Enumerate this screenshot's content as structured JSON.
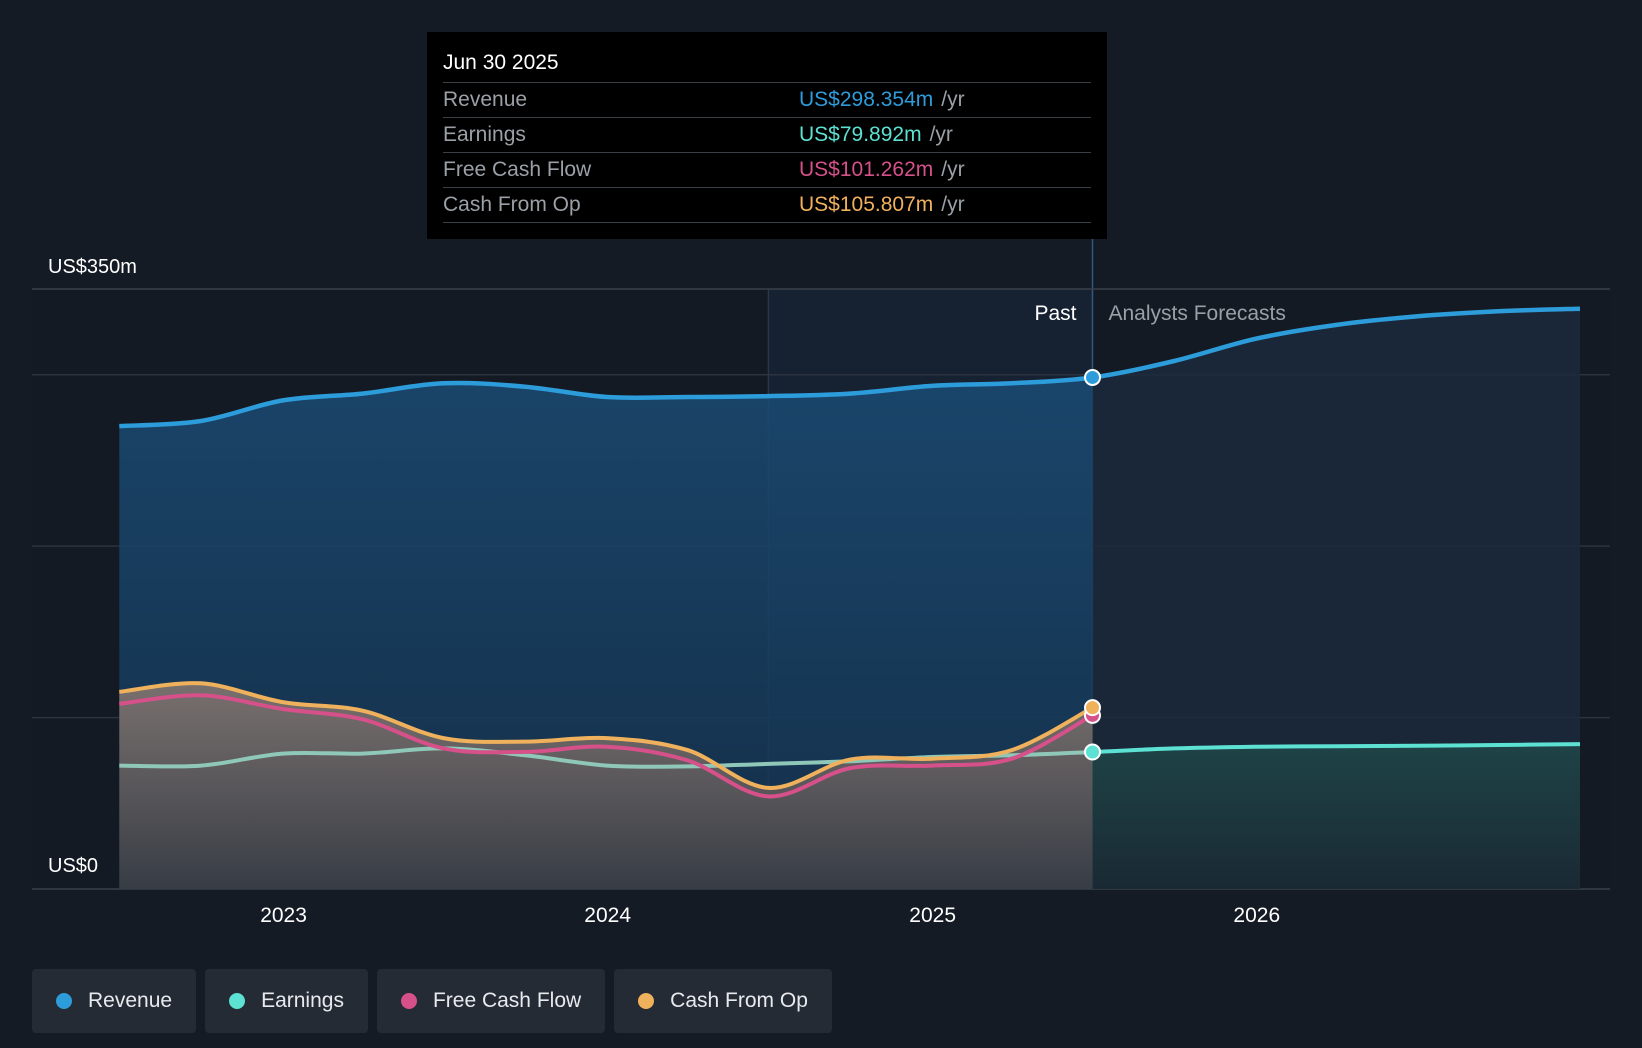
{
  "tooltip": {
    "date": "Jun 30 2025",
    "rows": [
      {
        "label": "Revenue",
        "value": "US$298.354m",
        "unit": "/yr",
        "color": "#2d9cdb"
      },
      {
        "label": "Earnings",
        "value": "US$79.892m",
        "unit": "/yr",
        "color": "#5ce1d3"
      },
      {
        "label": "Free Cash Flow",
        "value": "US$101.262m",
        "unit": "/yr",
        "color": "#d6508a"
      },
      {
        "label": "Cash From Op",
        "value": "US$105.807m",
        "unit": "/yr",
        "color": "#f0b15d"
      }
    ]
  },
  "legend": [
    {
      "label": "Revenue",
      "color": "#2d9cdb"
    },
    {
      "label": "Earnings",
      "color": "#5ce1d3"
    },
    {
      "label": "Free Cash Flow",
      "color": "#d6508a"
    },
    {
      "label": "Cash From Op",
      "color": "#f0b15d"
    }
  ],
  "chart_data": {
    "type": "line",
    "y_axis": {
      "top_label": "US$350m",
      "bottom_label": "US$0",
      "ylim": [
        0,
        350
      ],
      "gridlines": [
        100,
        200,
        300
      ]
    },
    "x_ticks": [
      {
        "label": "2023",
        "x": "2023-01-01"
      },
      {
        "label": "2024",
        "x": "2024-01-01"
      },
      {
        "label": "2025",
        "x": "2025-01-01"
      },
      {
        "label": "2026",
        "x": "2026-01-01"
      }
    ],
    "x_range": [
      "2022-05-01",
      "2026-12-31"
    ],
    "divider": {
      "date": "2025-06-30",
      "past_label": "Past",
      "forecast_label": "Analysts Forecasts"
    },
    "highlight_start": "2024-06-30",
    "series": [
      {
        "name": "Revenue",
        "color": "#2d9cdb",
        "points": [
          [
            "2022-06-30",
            270
          ],
          [
            "2022-09-30",
            273
          ],
          [
            "2022-12-31",
            285
          ],
          [
            "2023-03-31",
            289
          ],
          [
            "2023-06-30",
            295
          ],
          [
            "2023-09-30",
            293
          ],
          [
            "2023-12-31",
            287
          ],
          [
            "2024-03-31",
            287
          ],
          [
            "2024-06-30",
            287.5
          ],
          [
            "2024-09-30",
            289
          ],
          [
            "2024-12-31",
            293.5
          ],
          [
            "2025-03-31",
            295
          ],
          [
            "2025-06-30",
            298.4
          ],
          [
            "2025-09-30",
            308
          ],
          [
            "2025-12-31",
            321
          ],
          [
            "2026-03-31",
            329
          ],
          [
            "2026-06-30",
            334
          ],
          [
            "2026-09-30",
            337
          ],
          [
            "2026-12-31",
            338.5
          ]
        ]
      },
      {
        "name": "Earnings",
        "color": "#5ce1d3",
        "points": [
          [
            "2022-06-30",
            72
          ],
          [
            "2022-09-30",
            72
          ],
          [
            "2022-12-31",
            79
          ],
          [
            "2023-03-31",
            79
          ],
          [
            "2023-06-30",
            82
          ],
          [
            "2023-09-30",
            78
          ],
          [
            "2023-12-31",
            72
          ],
          [
            "2024-03-31",
            71.5
          ],
          [
            "2024-06-30",
            73
          ],
          [
            "2024-09-30",
            74.5
          ],
          [
            "2024-12-31",
            77
          ],
          [
            "2025-03-31",
            78
          ],
          [
            "2025-06-30",
            79.9
          ],
          [
            "2025-09-30",
            82
          ],
          [
            "2025-12-31",
            83
          ],
          [
            "2026-03-31",
            83.3
          ],
          [
            "2026-06-30",
            83.6
          ],
          [
            "2026-09-30",
            84
          ],
          [
            "2026-12-31",
            84.5
          ]
        ]
      },
      {
        "name": "Free Cash Flow",
        "color": "#d6508a",
        "points": [
          [
            "2022-06-30",
            108
          ],
          [
            "2022-09-30",
            113
          ],
          [
            "2022-12-31",
            105
          ],
          [
            "2023-03-31",
            99
          ],
          [
            "2023-06-30",
            82
          ],
          [
            "2023-09-30",
            80
          ],
          [
            "2023-12-31",
            83
          ],
          [
            "2024-03-31",
            75
          ],
          [
            "2024-06-30",
            54
          ],
          [
            "2024-09-30",
            70.5
          ],
          [
            "2024-12-31",
            72
          ],
          [
            "2025-03-31",
            76
          ],
          [
            "2025-06-30",
            101.3
          ]
        ]
      },
      {
        "name": "Cash From Op",
        "color": "#f0b15d",
        "points": [
          [
            "2022-06-30",
            115
          ],
          [
            "2022-09-30",
            120
          ],
          [
            "2022-12-31",
            109
          ],
          [
            "2023-03-31",
            104
          ],
          [
            "2023-06-30",
            88
          ],
          [
            "2023-09-30",
            86
          ],
          [
            "2023-12-31",
            88
          ],
          [
            "2024-03-31",
            81
          ],
          [
            "2024-06-30",
            59
          ],
          [
            "2024-09-30",
            75.5
          ],
          [
            "2024-12-31",
            76
          ],
          [
            "2025-03-31",
            81
          ],
          [
            "2025-06-30",
            105.8
          ]
        ]
      }
    ]
  }
}
